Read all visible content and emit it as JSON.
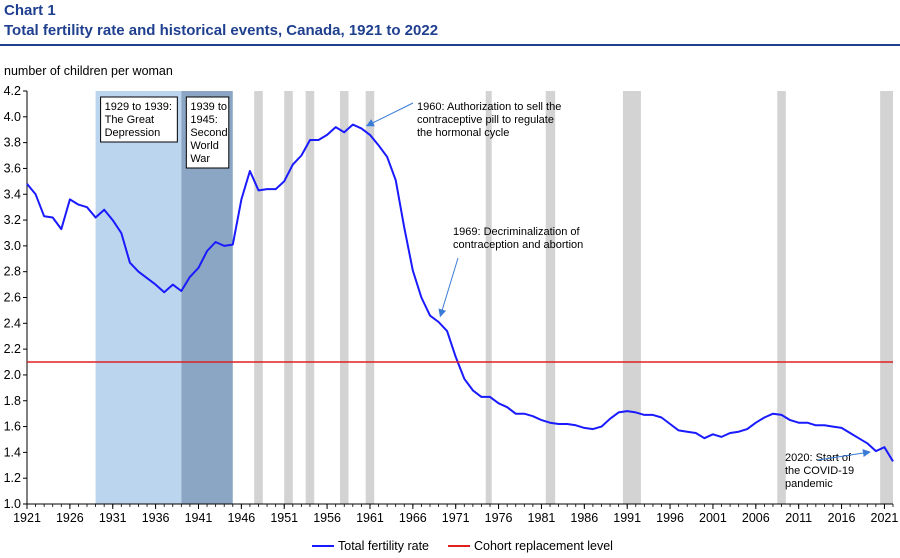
{
  "chart_label": "Chart 1",
  "chart_title": "Total fertility rate and historical events, Canada, 1921 to 2022",
  "chart_data": {
    "type": "line",
    "title": "Total fertility rate and historical events, Canada, 1921 to 2022",
    "ylabel": "number of children per woman",
    "xlabel": "",
    "xlim": [
      1921,
      2022
    ],
    "ylim": [
      1.0,
      4.2
    ],
    "y_ticks": [
      "1.0",
      "1.2",
      "1.4",
      "1.6",
      "1.8",
      "2.0",
      "2.2",
      "2.4",
      "2.6",
      "2.8",
      "3.0",
      "3.2",
      "3.4",
      "3.6",
      "3.8",
      "4.0",
      "4.2"
    ],
    "x_ticks": [
      "1921",
      "1926",
      "1931",
      "1936",
      "1941",
      "1946",
      "1951",
      "1956",
      "1961",
      "1966",
      "1971",
      "1976",
      "1981",
      "1986",
      "1991",
      "1996",
      "2001",
      "2006",
      "2011",
      "2016",
      "2021"
    ],
    "series": [
      {
        "name": "Total fertility rate",
        "color": "#1a1aff",
        "x": [
          1921,
          1922,
          1923,
          1924,
          1925,
          1926,
          1927,
          1928,
          1929,
          1930,
          1931,
          1932,
          1933,
          1934,
          1935,
          1936,
          1937,
          1938,
          1939,
          1940,
          1941,
          1942,
          1943,
          1944,
          1945,
          1946,
          1947,
          1948,
          1949,
          1950,
          1951,
          1952,
          1953,
          1954,
          1955,
          1956,
          1957,
          1958,
          1959,
          1960,
          1961,
          1962,
          1963,
          1964,
          1965,
          1966,
          1967,
          1968,
          1969,
          1970,
          1971,
          1972,
          1973,
          1974,
          1975,
          1976,
          1977,
          1978,
          1979,
          1980,
          1981,
          1982,
          1983,
          1984,
          1985,
          1986,
          1987,
          1988,
          1989,
          1990,
          1991,
          1992,
          1993,
          1994,
          1995,
          1996,
          1997,
          1998,
          1999,
          2000,
          2001,
          2002,
          2003,
          2004,
          2005,
          2006,
          2007,
          2008,
          2009,
          2010,
          2011,
          2012,
          2013,
          2014,
          2015,
          2016,
          2017,
          2018,
          2019,
          2020,
          2021,
          2022
        ],
        "values": [
          3.48,
          3.4,
          3.23,
          3.22,
          3.13,
          3.36,
          3.32,
          3.3,
          3.22,
          3.28,
          3.2,
          3.1,
          2.87,
          2.8,
          2.75,
          2.7,
          2.64,
          2.7,
          2.65,
          2.76,
          2.83,
          2.96,
          3.03,
          3.0,
          3.01,
          3.36,
          3.58,
          3.43,
          3.44,
          3.44,
          3.5,
          3.63,
          3.7,
          3.82,
          3.82,
          3.86,
          3.92,
          3.88,
          3.94,
          3.91,
          3.86,
          3.78,
          3.69,
          3.51,
          3.14,
          2.81,
          2.6,
          2.46,
          2.41,
          2.34,
          2.14,
          1.97,
          1.88,
          1.83,
          1.83,
          1.78,
          1.75,
          1.7,
          1.7,
          1.68,
          1.65,
          1.63,
          1.62,
          1.62,
          1.61,
          1.59,
          1.58,
          1.6,
          1.66,
          1.71,
          1.72,
          1.71,
          1.69,
          1.69,
          1.67,
          1.62,
          1.57,
          1.56,
          1.55,
          1.51,
          1.54,
          1.52,
          1.55,
          1.56,
          1.58,
          1.63,
          1.67,
          1.7,
          1.69,
          1.65,
          1.63,
          1.63,
          1.61,
          1.61,
          1.6,
          1.59,
          1.55,
          1.51,
          1.47,
          1.41,
          1.44,
          1.33
        ]
      },
      {
        "name": "Cohort replacement level",
        "color": "#e02020",
        "x": [
          1921,
          2022
        ],
        "values": [
          2.1,
          2.1
        ]
      }
    ],
    "shaded_periods": [
      {
        "start": 1929,
        "end": 1939,
        "color": "#bcd5ee",
        "label": [
          "1929 to 1939:",
          "The Great",
          "Depression"
        ]
      },
      {
        "start": 1939,
        "end": 1945,
        "color": "#8aa6c4",
        "label": [
          "1939 to",
          "1945:",
          "Second",
          "World",
          "War"
        ]
      }
    ],
    "recession_bars": [
      {
        "start": 1947.5,
        "end": 1948.5
      },
      {
        "start": 1951,
        "end": 1952
      },
      {
        "start": 1953.5,
        "end": 1954.5
      },
      {
        "start": 1957.5,
        "end": 1958.5
      },
      {
        "start": 1960.5,
        "end": 1961.5
      },
      {
        "start": 1974.5,
        "end": 1975.2
      },
      {
        "start": 1981.5,
        "end": 1982.6
      },
      {
        "start": 1990.5,
        "end": 1992.6
      },
      {
        "start": 2008.5,
        "end": 2009.5
      },
      {
        "start": 2020.5,
        "end": 2022
      }
    ],
    "annotations": [
      {
        "lines": [
          "1960: Authorization to sell the",
          "contraceptive pill to regulate",
          "the hormonal cycle"
        ],
        "point_year": 1960,
        "point_value": 3.91
      },
      {
        "lines": [
          "1969: Decriminalization of",
          "contraception and abortion"
        ],
        "point_year": 1969,
        "point_value": 2.41
      },
      {
        "lines": [
          "2020: Start of",
          "the COVID-19",
          "pandemic"
        ],
        "point_year": 2020,
        "point_value": 1.41
      }
    ],
    "legend": {
      "position": "bottom-center",
      "items": [
        "Total fertility rate",
        "Cohort replacement level"
      ]
    }
  }
}
